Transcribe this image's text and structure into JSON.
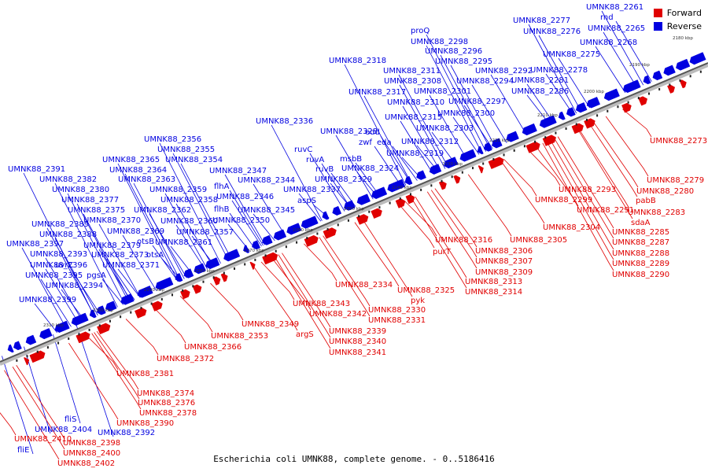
{
  "legend": {
    "forward_label": "Forward",
    "reverse_label": "Reverse",
    "forward_color": "#e00000",
    "reverse_color": "#0000e0"
  },
  "caption": "Escherichia coli UMNK88, complete genome. - 0..5186416",
  "colors": {
    "forward": "#e00000",
    "reverse": "#0000e0",
    "backbone": "#999999"
  },
  "ticks": [
    "2180 kbp",
    "2190 kbp",
    "2200 kbp",
    "2210 kbp",
    "2220 kbp",
    "2230 kbp",
    "2240 kbp",
    "2250 kbp",
    "2260 kbp",
    "2270 kbp",
    "2280 kbp",
    "2290 kbp",
    "2300 kbp",
    "2310 kbp"
  ],
  "reverse_genes": [
    "UMNK88_2261",
    "rnd",
    "UMNK88_2277",
    "UMNK88_2276",
    "UMNK88_2265",
    "UMNK88_2268",
    "UMNK88_2275",
    "proQ",
    "UMNK88_2298",
    "UMNK88_2296",
    "UMNK88_2295",
    "UMNK88_2278",
    "UMNK88_2318",
    "UMNK88_2311",
    "UMNK88_2292",
    "UMNK88_2294",
    "UMNK88_2281",
    "UMNK88_2308",
    "UMNK88_2301",
    "UMNK88_2317",
    "UMNK88_2286",
    "UMNK88_2310",
    "UMNK88_2297",
    "UMNK88_2300",
    "UMNK88_2336",
    "UMNK88_2315",
    "UMNK88_2328",
    "edd",
    "UMNK88_2303",
    "UMNK88_2356",
    "zwf",
    "eda",
    "UMNK88_2355",
    "UMNK88_2312",
    "ruvC",
    "UMNK88_2319",
    "UMNK88_2365",
    "UMNK88_2354",
    "msbB",
    "ruvA",
    "UMNK88_2364",
    "ruvB",
    "UMNK88_2324",
    "UMNK88_2391",
    "UMNK88_2347",
    "UMNK88_2382",
    "UMNK88_2363",
    "UMNK88_2344",
    "UMNK88_2329",
    "flhA",
    "UMNK88_2380",
    "UMNK88_2359",
    "UMNK88_2346",
    "UMNK88_2337",
    "UMNK88_2377",
    "UMNK88_2358",
    "aspS",
    "UMNK88_2375",
    "UMNK88_2362",
    "flhB",
    "UMNK88_2345",
    "UMNK88_2370",
    "UMNK88_2360",
    "UMNK88_2350",
    "UMNK88_2389",
    "UMNK88_2369",
    "UMNK88_2357",
    "UMNK88_2388",
    "otsB",
    "UMNK88_2397",
    "UMNK88_2379",
    "UMNK88_2361",
    "UMNK88_2393",
    "UMNK88_2373",
    "otsA",
    "UMNK88_2396",
    "uvrC",
    "UMNK88_2371",
    "UMNK88_2395",
    "pgsA",
    "UMNK88_2394",
    "UMNK88_2399",
    "fliS",
    "UMNK88_2404",
    "UMNK88_2392",
    "fliE"
  ],
  "forward_genes": [
    "UMNK88_2273",
    "UMNK88_2279",
    "UMNK88_2280",
    "UMNK88_2293",
    "pabB",
    "UMNK88_2299",
    "UMNK88_2291",
    "UMNK88_2283",
    "sdaA",
    "UMNK88_2285",
    "UMNK88_2304",
    "UMNK88_2287",
    "UMNK88_2316",
    "UMNK88_2305",
    "UMNK88_2288",
    "purT",
    "UMNK88_2306",
    "UMNK88_2289",
    "UMNK88_2307",
    "UMNK88_2290",
    "UMNK88_2309",
    "UMNK88_2313",
    "UMNK88_2314",
    "UMNK88_2334",
    "UMNK88_2325",
    "pyk",
    "UMNK88_2343",
    "UMNK88_2342",
    "UMNK88_2330",
    "UMNK88_2331",
    "UMNK88_2349",
    "argS",
    "UMNK88_2339",
    "UMNK88_2353",
    "UMNK88_2340",
    "UMNK88_2366",
    "UMNK88_2341",
    "UMNK88_2372",
    "UMNK88_2381",
    "UMNK88_2374",
    "UMNK88_2376",
    "UMNK88_2378",
    "UMNK88_2390",
    "UMNK88_2398",
    "UMNK88_2410",
    "UMNK88_2400",
    "UMNK88_2402"
  ]
}
